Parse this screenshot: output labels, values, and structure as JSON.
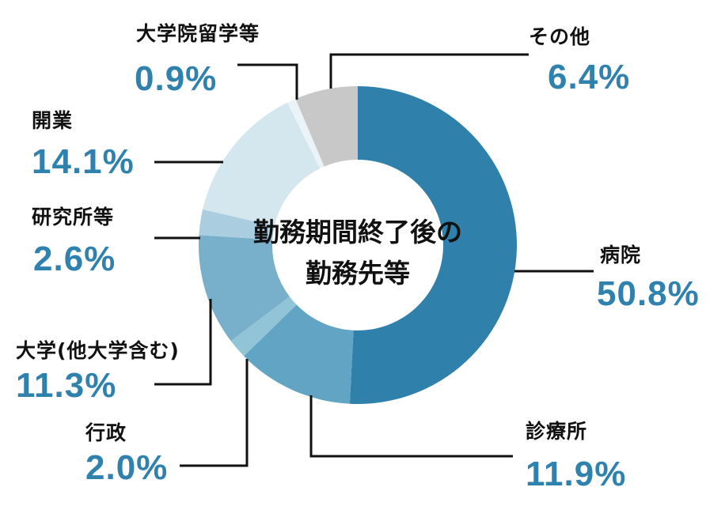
{
  "chart_data": {
    "type": "pie",
    "variant": "donut",
    "title": "勤務期間終了後の勤務先等",
    "center_label": [
      "勤務期間終了後の",
      "勤務先等"
    ],
    "start_angle": "12 o'clock, clockwise",
    "categories": [
      "病院",
      "診療所",
      "行政",
      "大学(他大学含む)",
      "研究所等",
      "開業",
      "大学院留学等",
      "その他"
    ],
    "values": [
      50.8,
      11.9,
      2.0,
      11.3,
      2.6,
      14.1,
      0.9,
      6.4
    ],
    "unit": "%",
    "colors": [
      "#2f80ab",
      "#62a4c3",
      "#90c4d6",
      "#78afca",
      "#aacde0",
      "#d4e6ee",
      "#eaf3f8",
      "#c8c8c8"
    ],
    "value_labels": [
      "50.8%",
      "11.9%",
      "2.0%",
      "11.3%",
      "2.6%",
      "14.1%",
      "0.9%",
      "6.4%"
    ],
    "legend": "none (callout labels with leader lines)",
    "label_color": "#2f82ad"
  },
  "labels": {
    "hospital": {
      "name": "病院",
      "value": "50.8%"
    },
    "clinic": {
      "name": "診療所",
      "value": "11.9%"
    },
    "government": {
      "name": "行政",
      "value": "2.0%"
    },
    "university": {
      "name": "大学(他大学含む)",
      "value": "11.3%"
    },
    "research": {
      "name": "研究所等",
      "value": "2.6%"
    },
    "practice": {
      "name": "開業",
      "value": "14.1%"
    },
    "grad_school": {
      "name": "大学院留学等",
      "value": "0.9%"
    },
    "other": {
      "name": "その他",
      "value": "6.4%"
    }
  },
  "center": {
    "line1": "勤務期間終了後の",
    "line2": "勤務先等"
  }
}
